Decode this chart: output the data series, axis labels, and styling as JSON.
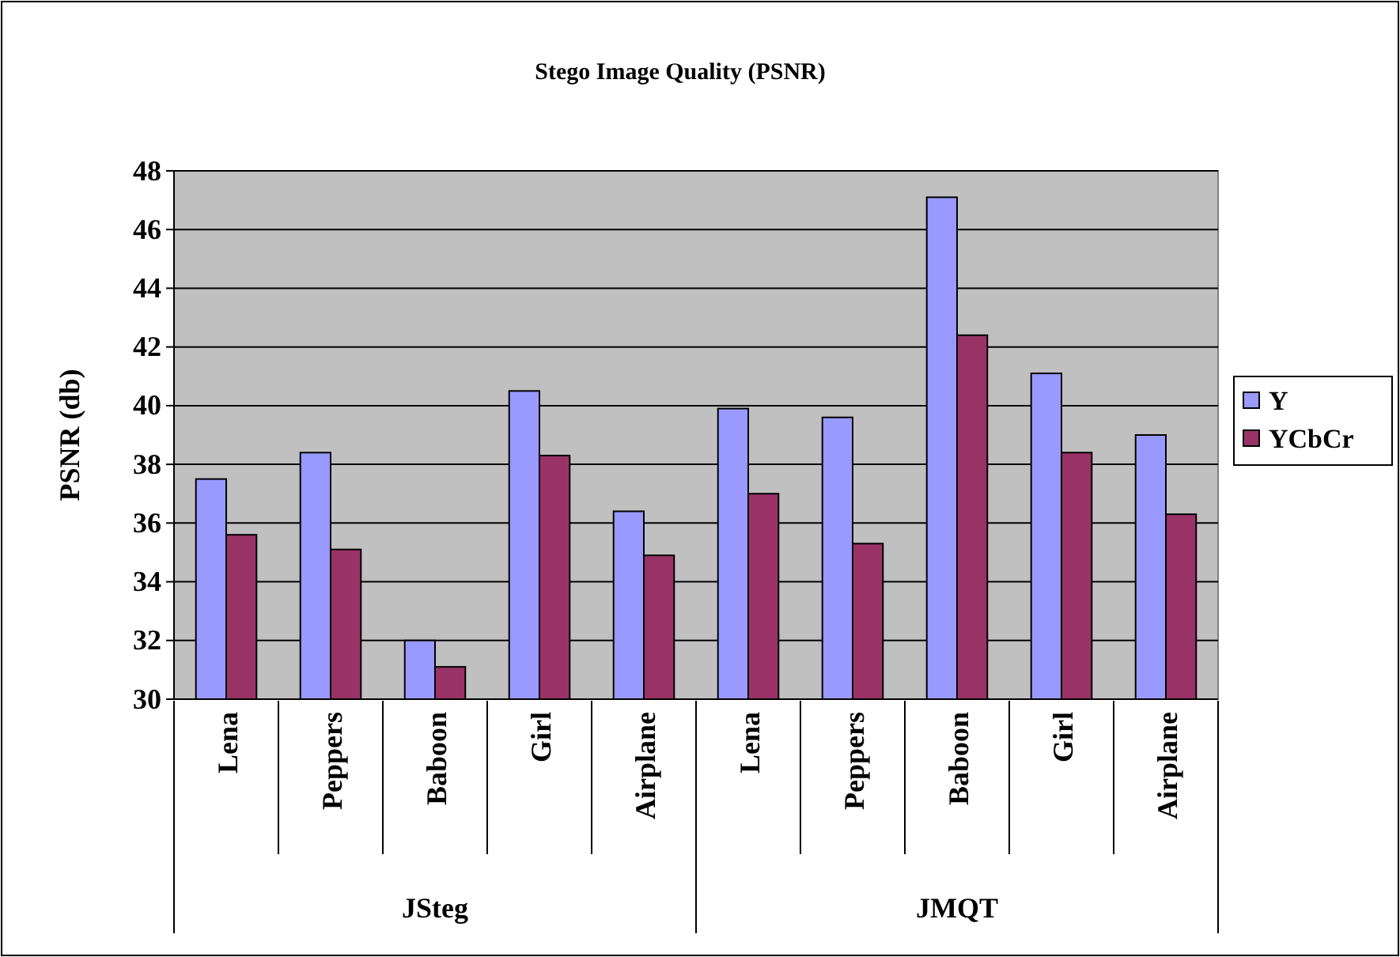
{
  "chart_data": {
    "type": "bar",
    "title": "Stego Image Quality (PSNR)",
    "ylabel": "PSNR (db)",
    "categories": [
      "Lena",
      "Peppers",
      "Baboon",
      "Girl",
      "Airplane",
      "Lena",
      "Peppers",
      "Baboon",
      "Girl",
      "Airplane"
    ],
    "series": [
      {
        "name": "Y",
        "color": "#9999ff",
        "values": [
          37.5,
          38.4,
          32.0,
          40.5,
          36.4,
          39.9,
          39.6,
          47.1,
          41.1,
          39.0
        ]
      },
      {
        "name": "YCbCr",
        "color": "#993366",
        "values": [
          35.6,
          35.1,
          31.1,
          38.3,
          34.9,
          37.0,
          35.3,
          42.4,
          38.4,
          36.3
        ]
      }
    ],
    "annotations": [
      "JSteg",
      "JMQT"
    ],
    "ylim": [
      30,
      48
    ],
    "yticks": [
      30,
      32,
      34,
      36,
      38,
      40,
      42,
      44,
      46,
      48
    ],
    "grid": "y",
    "legend": "right"
  }
}
